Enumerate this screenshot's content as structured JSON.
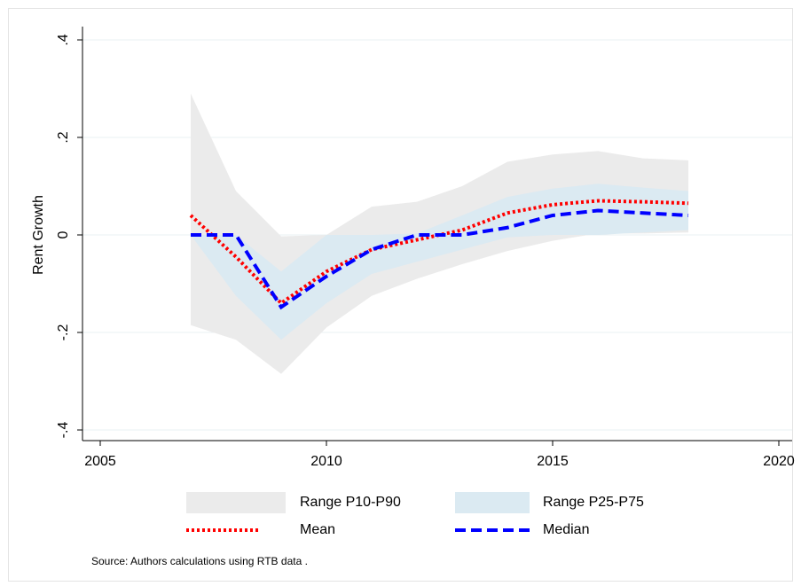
{
  "chart_data": {
    "type": "line",
    "ylabel": "Rent Growth",
    "x": [
      2007,
      2008,
      2009,
      2010,
      2011,
      2012,
      2013,
      2014,
      2015,
      2016,
      2017,
      2018
    ],
    "bands": [
      {
        "name": "Range P10-P90",
        "color": "#ebebeb",
        "upper": [
          0.29,
          0.09,
          -0.003,
          0.0,
          0.058,
          0.068,
          0.1,
          0.15,
          0.165,
          0.172,
          0.157,
          0.153
        ],
        "lower": [
          -0.185,
          -0.215,
          -0.285,
          -0.19,
          -0.125,
          -0.09,
          -0.06,
          -0.033,
          -0.012,
          0.003,
          0.003,
          0.005
        ]
      },
      {
        "name": "Range P25-P75",
        "color": "#dbeaf2",
        "upper": [
          0.0,
          0.0,
          -0.075,
          0.0,
          0.0,
          0.003,
          0.04,
          0.078,
          0.095,
          0.105,
          0.097,
          0.09
        ],
        "lower": [
          0.0,
          -0.125,
          -0.215,
          -0.14,
          -0.08,
          -0.055,
          -0.03,
          -0.005,
          0.0,
          0.0,
          0.005,
          0.01
        ]
      }
    ],
    "series": [
      {
        "name": "Mean",
        "color": "#ff0000",
        "dash": "dot",
        "values": [
          0.04,
          -0.045,
          -0.14,
          -0.075,
          -0.03,
          -0.01,
          0.01,
          0.045,
          0.062,
          0.07,
          0.068,
          0.065
        ]
      },
      {
        "name": "Median",
        "color": "#0000ff",
        "dash": "dash",
        "values": [
          0.0,
          0.0,
          -0.148,
          -0.085,
          -0.03,
          0.0,
          0.0,
          0.015,
          0.04,
          0.05,
          0.045,
          0.04
        ]
      }
    ],
    "xlim": [
      2004.6,
      2020.3
    ],
    "xticks": [
      2005,
      2010,
      2015,
      2020
    ],
    "ylim": [
      -0.42,
      0.425
    ],
    "yticks": [
      {
        "value": 0.4,
        "label": ".4"
      },
      {
        "value": 0.2,
        "label": ".2"
      },
      0,
      {
        "value": -0.2,
        "label": "-.2"
      },
      {
        "value": -0.4,
        "label": "-.4"
      }
    ],
    "grid": true,
    "note": "Source: Authors calculations using RTB data ."
  }
}
